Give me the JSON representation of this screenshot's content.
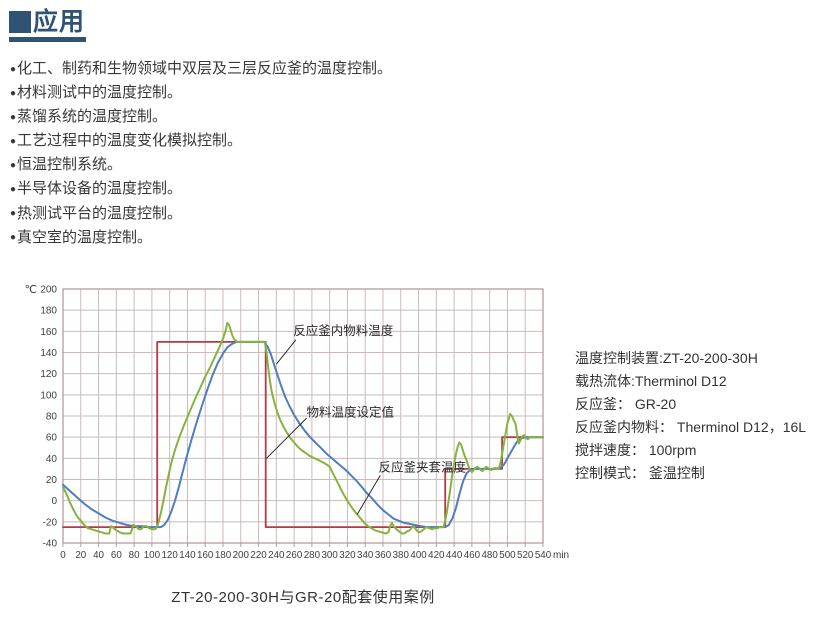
{
  "header": {
    "title": "应用"
  },
  "list": {
    "bullet_char": "●"
  },
  "applications": [
    "化工、制药和生物领域中双层及三层反应釜的温度控制。",
    "材料测试中的温度控制。",
    "蒸馏系统的温度控制。",
    "工艺过程中的温度变化模拟控制。",
    "恒温控制系统。",
    "半导体设备的温度控制。",
    "热测试平台的温度控制。",
    "真空室的温度控制。"
  ],
  "test_conditions": [
    "温度控制装置:ZT-20-200-30H",
    "载热流体:Therminol D12",
    "反应釜： GR-20",
    "反应釜内物料： Therminol D12，16L",
    "搅拌速度： 100rpm",
    "控制模式： 釜温控制"
  ],
  "caption": "ZT-20-200-30H与GR-20配套使用案例",
  "colors": {
    "accent": "#2f5374",
    "grid": "#ccb9b9",
    "frame": "#b49d9d",
    "tick_text": "#3e3e3e",
    "annotation": "#2b2b2b",
    "setpoint": "#b23b45",
    "material": "#4e7ec0",
    "jacket": "#84b440"
  },
  "chart_data": {
    "type": "line",
    "title": "",
    "xlabel": "min",
    "ylabel": "℃",
    "xlim": [
      0,
      540
    ],
    "ylim": [
      -40,
      200
    ],
    "x_tick_step": 20,
    "y_tick_step": 20,
    "grid": true,
    "legend_position": "none",
    "annotations": [
      {
        "text": "反应釜内物料温度",
        "tx": 259,
        "ty": 161,
        "x1": 262,
        "y1": 152,
        "x2": 240,
        "y2": 129
      },
      {
        "text": "物料温度设定值",
        "tx": 274,
        "ty": 84,
        "x1": 274,
        "y1": 78,
        "x2": 229,
        "y2": 40
      },
      {
        "text": "反应釜夹套温度",
        "tx": 355,
        "ty": 32,
        "x1": 357,
        "y1": 24,
        "x2": 331,
        "y2": -13
      }
    ],
    "series": [
      {
        "name": "物料温度设定值",
        "color_key": "setpoint",
        "width": 1.8,
        "points": [
          [
            0,
            -25
          ],
          [
            106,
            -25
          ],
          [
            106,
            150
          ],
          [
            228,
            150
          ],
          [
            228,
            -25
          ],
          [
            430,
            -25
          ],
          [
            430,
            30
          ],
          [
            494,
            30
          ],
          [
            494,
            60
          ],
          [
            540,
            60
          ]
        ]
      },
      {
        "name": "反应釜内物料温度",
        "color_key": "material",
        "width": 2,
        "points": [
          [
            0,
            15
          ],
          [
            8,
            9
          ],
          [
            16,
            3
          ],
          [
            24,
            -3
          ],
          [
            32,
            -8
          ],
          [
            40,
            -12
          ],
          [
            48,
            -16
          ],
          [
            56,
            -19
          ],
          [
            64,
            -21
          ],
          [
            72,
            -23
          ],
          [
            80,
            -24
          ],
          [
            88,
            -24
          ],
          [
            96,
            -25
          ],
          [
            104,
            -25
          ],
          [
            110,
            -25
          ],
          [
            114,
            -23
          ],
          [
            118,
            -18
          ],
          [
            122,
            -10
          ],
          [
            126,
            0
          ],
          [
            130,
            12
          ],
          [
            134,
            25
          ],
          [
            138,
            38
          ],
          [
            144,
            56
          ],
          [
            150,
            73
          ],
          [
            156,
            89
          ],
          [
            162,
            104
          ],
          [
            168,
            118
          ],
          [
            174,
            130
          ],
          [
            180,
            139
          ],
          [
            185,
            145
          ],
          [
            190,
            148
          ],
          [
            195,
            150
          ],
          [
            205,
            150
          ],
          [
            215,
            150
          ],
          [
            226,
            150
          ],
          [
            230,
            146
          ],
          [
            234,
            138
          ],
          [
            238,
            127
          ],
          [
            242,
            117
          ],
          [
            246,
            107
          ],
          [
            250,
            98
          ],
          [
            255,
            89
          ],
          [
            260,
            81
          ],
          [
            266,
            73
          ],
          [
            272,
            66
          ],
          [
            278,
            60
          ],
          [
            284,
            55
          ],
          [
            290,
            50
          ],
          [
            297,
            44
          ],
          [
            304,
            39
          ],
          [
            311,
            34
          ],
          [
            318,
            29
          ],
          [
            324,
            24
          ],
          [
            330,
            19
          ],
          [
            336,
            13
          ],
          [
            342,
            7
          ],
          [
            348,
            2
          ],
          [
            354,
            -4
          ],
          [
            360,
            -9
          ],
          [
            366,
            -13
          ],
          [
            372,
            -17
          ],
          [
            378,
            -19
          ],
          [
            384,
            -21
          ],
          [
            390,
            -22
          ],
          [
            396,
            -23
          ],
          [
            402,
            -24
          ],
          [
            410,
            -25
          ],
          [
            420,
            -25
          ],
          [
            430,
            -25
          ],
          [
            434,
            -23
          ],
          [
            438,
            -17
          ],
          [
            442,
            -7
          ],
          [
            446,
            6
          ],
          [
            450,
            18
          ],
          [
            454,
            26
          ],
          [
            458,
            29
          ],
          [
            462,
            30
          ],
          [
            470,
            30
          ],
          [
            478,
            30
          ],
          [
            486,
            30
          ],
          [
            492,
            31
          ],
          [
            496,
            34
          ],
          [
            500,
            40
          ],
          [
            504,
            46
          ],
          [
            508,
            52
          ],
          [
            512,
            57
          ],
          [
            516,
            59
          ],
          [
            520,
            60
          ],
          [
            530,
            60
          ],
          [
            540,
            60
          ]
        ]
      },
      {
        "name": "反应釜夹套温度",
        "color_key": "jacket",
        "width": 2,
        "points": [
          [
            0,
            13
          ],
          [
            4,
            6
          ],
          [
            8,
            -2
          ],
          [
            12,
            -9
          ],
          [
            16,
            -15
          ],
          [
            20,
            -19
          ],
          [
            24,
            -23
          ],
          [
            28,
            -26
          ],
          [
            32,
            -27
          ],
          [
            36,
            -28
          ],
          [
            40,
            -29
          ],
          [
            44,
            -30
          ],
          [
            48,
            -31
          ],
          [
            52,
            -31
          ],
          [
            54,
            -24
          ],
          [
            57,
            -26
          ],
          [
            60,
            -28
          ],
          [
            64,
            -30
          ],
          [
            68,
            -31
          ],
          [
            72,
            -31
          ],
          [
            76,
            -31
          ],
          [
            79,
            -23
          ],
          [
            82,
            -24
          ],
          [
            85,
            -27
          ],
          [
            88,
            -27
          ],
          [
            91,
            -24
          ],
          [
            94,
            -24
          ],
          [
            97,
            -26
          ],
          [
            100,
            -27
          ],
          [
            104,
            -27
          ],
          [
            107,
            -22
          ],
          [
            110,
            -12
          ],
          [
            113,
            0
          ],
          [
            116,
            13
          ],
          [
            119,
            25
          ],
          [
            122,
            36
          ],
          [
            126,
            48
          ],
          [
            130,
            58
          ],
          [
            136,
            71
          ],
          [
            142,
            83
          ],
          [
            148,
            95
          ],
          [
            154,
            106
          ],
          [
            160,
            117
          ],
          [
            166,
            127
          ],
          [
            171,
            136
          ],
          [
            176,
            145
          ],
          [
            180,
            153
          ],
          [
            183,
            161
          ],
          [
            185,
            168
          ],
          [
            187,
            166
          ],
          [
            189,
            160
          ],
          [
            191,
            155
          ],
          [
            193,
            152
          ],
          [
            196,
            150
          ],
          [
            205,
            150
          ],
          [
            212,
            150
          ],
          [
            220,
            150
          ],
          [
            227,
            150
          ],
          [
            229,
            140
          ],
          [
            231,
            125
          ],
          [
            233,
            112
          ],
          [
            235,
            102
          ],
          [
            238,
            92
          ],
          [
            241,
            84
          ],
          [
            244,
            77
          ],
          [
            248,
            70
          ],
          [
            252,
            64
          ],
          [
            256,
            59
          ],
          [
            260,
            55
          ],
          [
            264,
            51
          ],
          [
            268,
            48
          ],
          [
            273,
            45
          ],
          [
            278,
            42
          ],
          [
            283,
            40
          ],
          [
            288,
            38
          ],
          [
            293,
            36
          ],
          [
            297,
            34
          ],
          [
            300,
            32
          ],
          [
            303,
            27
          ],
          [
            306,
            22
          ],
          [
            309,
            17
          ],
          [
            312,
            12
          ],
          [
            315,
            7
          ],
          [
            319,
            1
          ],
          [
            323,
            -4
          ],
          [
            327,
            -9
          ],
          [
            331,
            -13
          ],
          [
            335,
            -17
          ],
          [
            339,
            -21
          ],
          [
            343,
            -24
          ],
          [
            347,
            -26
          ],
          [
            351,
            -28
          ],
          [
            355,
            -29
          ],
          [
            359,
            -30
          ],
          [
            363,
            -31
          ],
          [
            366,
            -30
          ],
          [
            368,
            -24
          ],
          [
            370,
            -21
          ],
          [
            372,
            -24
          ],
          [
            375,
            -27
          ],
          [
            378,
            -29
          ],
          [
            381,
            -31
          ],
          [
            384,
            -31
          ],
          [
            387,
            -29
          ],
          [
            390,
            -28
          ],
          [
            392,
            -26
          ],
          [
            394,
            -24
          ],
          [
            396,
            -26
          ],
          [
            398,
            -28
          ],
          [
            400,
            -30
          ],
          [
            403,
            -29
          ],
          [
            406,
            -27
          ],
          [
            409,
            -25
          ],
          [
            412,
            -26
          ],
          [
            415,
            -27
          ],
          [
            418,
            -26
          ],
          [
            421,
            -26
          ],
          [
            424,
            -25
          ],
          [
            428,
            -25
          ],
          [
            430,
            -19
          ],
          [
            432,
            -10
          ],
          [
            434,
            1
          ],
          [
            436,
            13
          ],
          [
            438,
            25
          ],
          [
            440,
            35
          ],
          [
            442,
            44
          ],
          [
            444,
            51
          ],
          [
            446,
            55
          ],
          [
            448,
            53
          ],
          [
            450,
            47
          ],
          [
            452,
            42
          ],
          [
            454,
            38
          ],
          [
            456,
            33
          ],
          [
            458,
            29
          ],
          [
            460,
            27
          ],
          [
            462,
            29
          ],
          [
            464,
            31
          ],
          [
            466,
            32
          ],
          [
            468,
            31
          ],
          [
            470,
            29
          ],
          [
            472,
            28
          ],
          [
            474,
            30
          ],
          [
            476,
            32
          ],
          [
            478,
            31
          ],
          [
            480,
            30
          ],
          [
            482,
            29
          ],
          [
            484,
            30
          ],
          [
            486,
            31
          ],
          [
            488,
            30
          ],
          [
            490,
            30
          ],
          [
            492,
            35
          ],
          [
            494,
            44
          ],
          [
            496,
            54
          ],
          [
            498,
            64
          ],
          [
            500,
            73
          ],
          [
            502,
            79
          ],
          [
            503,
            82
          ],
          [
            505,
            80
          ],
          [
            507,
            76
          ],
          [
            509,
            73
          ],
          [
            510,
            68
          ],
          [
            511,
            62
          ],
          [
            512,
            57
          ],
          [
            513,
            54
          ],
          [
            515,
            58
          ],
          [
            517,
            61
          ],
          [
            519,
            62
          ],
          [
            521,
            59
          ],
          [
            523,
            58
          ],
          [
            525,
            60
          ],
          [
            528,
            60
          ],
          [
            534,
            60
          ],
          [
            540,
            60
          ]
        ]
      }
    ]
  }
}
